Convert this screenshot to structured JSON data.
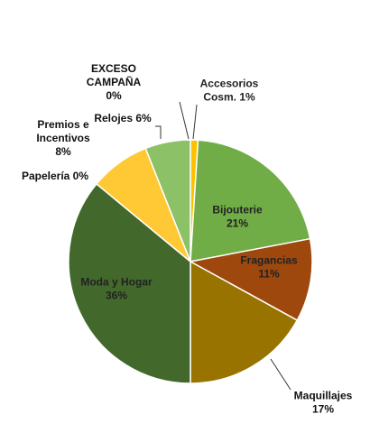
{
  "chart_data": {
    "type": "pie",
    "title": "",
    "slices": [
      {
        "lines": [
          "Accesorios",
          "Cosm. 1%"
        ],
        "value": 1,
        "color": "#ffc000"
      },
      {
        "lines": [
          "Bijouterie",
          "21%"
        ],
        "value": 21,
        "color": "#70ad47"
      },
      {
        "lines": [
          "Fragancias",
          "11%"
        ],
        "value": 11,
        "color": "#9e480e"
      },
      {
        "lines": [
          "Maquillajes",
          "17%"
        ],
        "value": 17,
        "color": "#997300"
      },
      {
        "lines": [
          "Moda y Hogar",
          "36%"
        ],
        "value": 36,
        "color": "#43682b"
      },
      {
        "lines": [
          "Papelería 0%"
        ],
        "value": 0,
        "color": "#636363"
      },
      {
        "lines": [
          "Premios e",
          "Incentivos",
          "8%"
        ],
        "value": 8,
        "color": "#ffc936"
      },
      {
        "lines": [
          "Relojes 6%"
        ],
        "value": 6,
        "color": "#8cc168"
      },
      {
        "lines": [
          "EXCESO",
          "CAMPAÑA",
          "0%"
        ],
        "value": 0,
        "color": "#255e91"
      }
    ]
  }
}
